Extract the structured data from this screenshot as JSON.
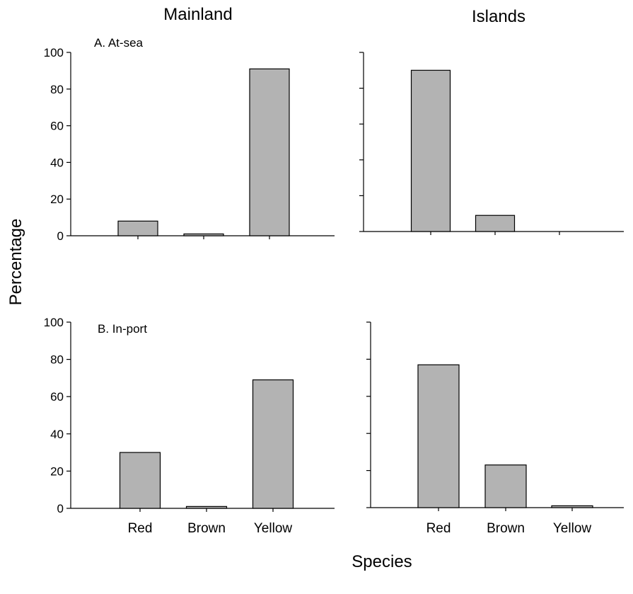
{
  "figure": {
    "column_titles": [
      "Mainland",
      "Islands"
    ],
    "ylabel": "Percentage",
    "xlabel": "Species",
    "panel_labels": [
      "A. At-sea",
      "B. In-port"
    ],
    "bar_color": "#b3b3b3"
  },
  "chart_data": [
    {
      "type": "bar",
      "title": "A. At-sea",
      "column": "Mainland",
      "categories": [
        "Red",
        "Brown",
        "Yellow"
      ],
      "values": [
        8,
        1,
        91
      ],
      "ylim": [
        0,
        100
      ],
      "yticks": [
        0,
        20,
        40,
        60,
        80,
        100
      ],
      "show_y_tick_labels": true,
      "show_category_labels": false
    },
    {
      "type": "bar",
      "title": "",
      "column": "Islands",
      "categories": [
        "Red",
        "Brown",
        "Yellow"
      ],
      "values": [
        90,
        9,
        0
      ],
      "ylim": [
        0,
        100
      ],
      "yticks": [
        0,
        20,
        40,
        60,
        80,
        100
      ],
      "show_y_tick_labels": false,
      "show_category_labels": false
    },
    {
      "type": "bar",
      "title": "B. In-port",
      "column": "Mainland",
      "categories": [
        "Red",
        "Brown",
        "Yellow"
      ],
      "values": [
        30,
        1,
        69
      ],
      "ylim": [
        0,
        100
      ],
      "yticks": [
        0,
        20,
        40,
        60,
        80,
        100
      ],
      "show_y_tick_labels": true,
      "show_category_labels": true
    },
    {
      "type": "bar",
      "title": "",
      "column": "Islands",
      "categories": [
        "Red",
        "Brown",
        "Yellow"
      ],
      "values": [
        77,
        23,
        1
      ],
      "ylim": [
        0,
        100
      ],
      "yticks": [
        0,
        20,
        40,
        60,
        80,
        100
      ],
      "show_y_tick_labels": false,
      "show_category_labels": true
    }
  ]
}
